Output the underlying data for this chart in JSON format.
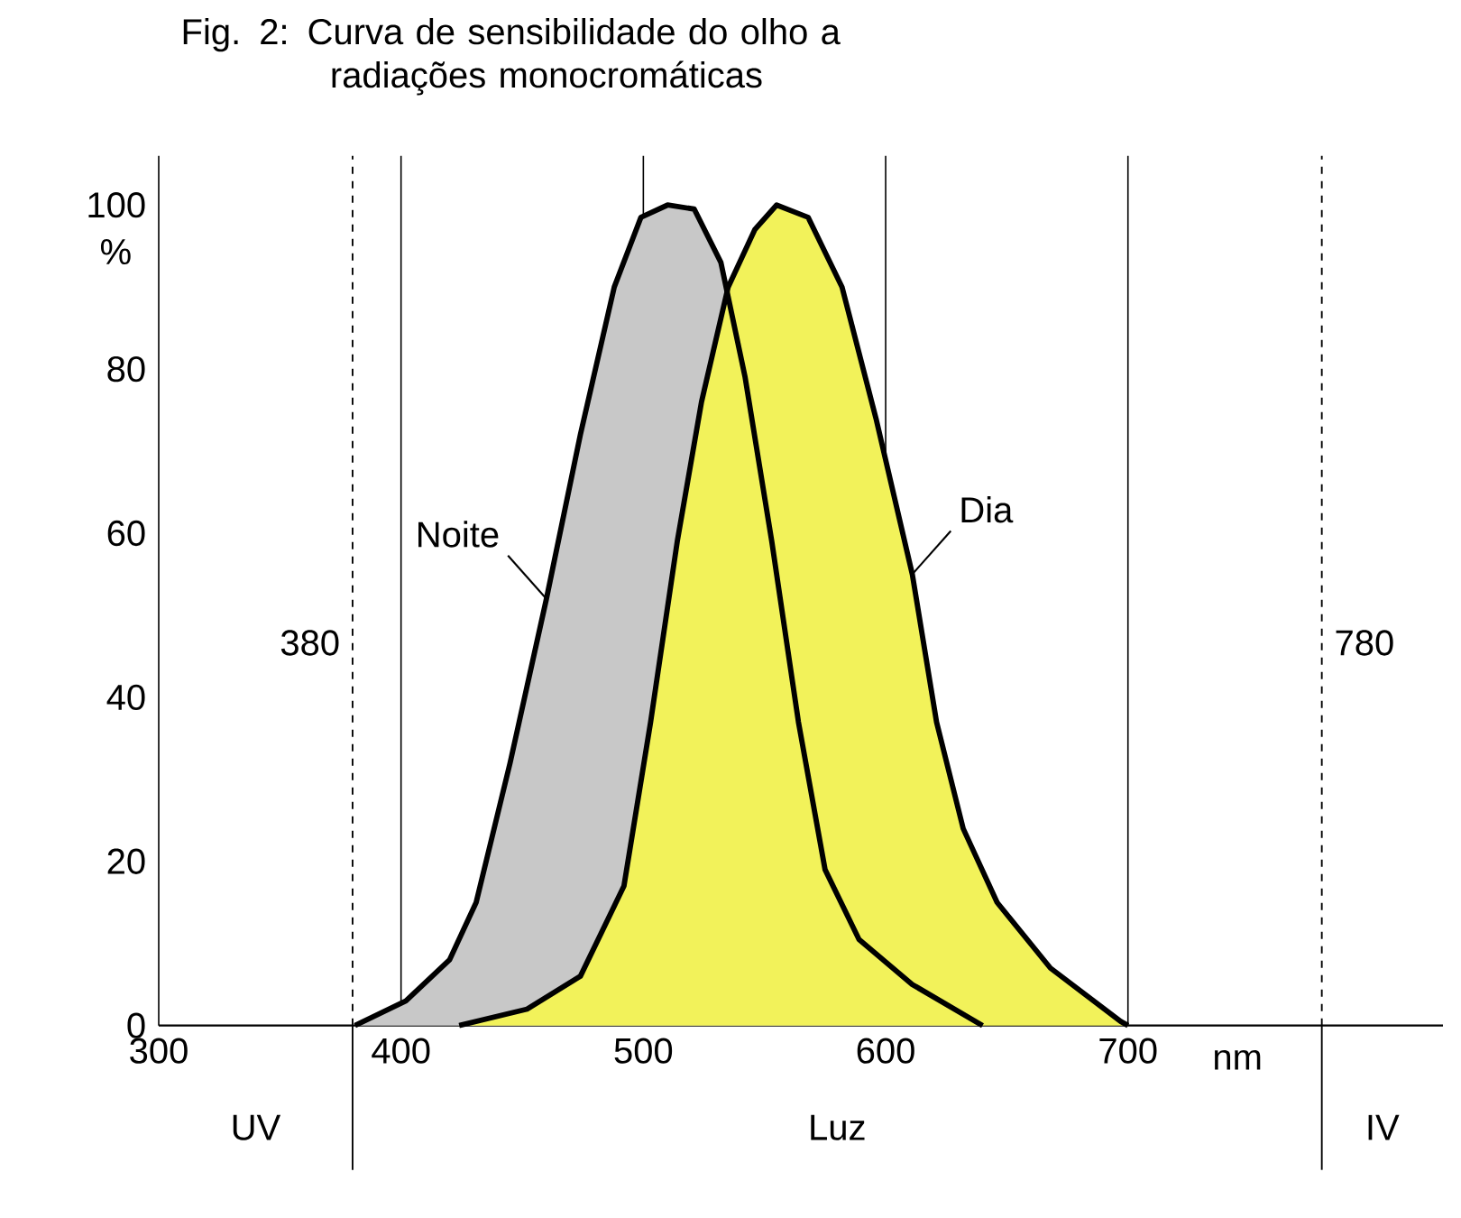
{
  "chart_data": {
    "type": "area",
    "title": "Fig. 2: Curva de sensibilidade do olho a radiações monocromáticas",
    "xlabel": "nm",
    "ylabel": "%",
    "xlim": [
      300,
      830
    ],
    "xticks": [
      300,
      400,
      500,
      600,
      700
    ],
    "ylim": [
      0,
      106
    ],
    "yticks": [
      0,
      20,
      40,
      60,
      80,
      100
    ],
    "grid": "x",
    "series": [
      {
        "name": "Noite",
        "color": "#c8c8c8",
        "x": [
          381,
          402,
          420,
          431,
          445,
          460,
          474,
          488,
          499,
          510,
          521,
          532,
          542,
          553,
          564,
          575,
          589,
          611,
          640
        ],
        "values": [
          0,
          3,
          8,
          15,
          32,
          52,
          72,
          90,
          98.5,
          100,
          99.5,
          93,
          79,
          59,
          37,
          19,
          10.5,
          5,
          0
        ]
      },
      {
        "name": "Dia",
        "color": "#f2f25a",
        "x": [
          424,
          452,
          474,
          492,
          503,
          514,
          524,
          535,
          546,
          555,
          568,
          582,
          596,
          611,
          621,
          632,
          646,
          668,
          697,
          700
        ],
        "values": [
          0,
          2,
          6,
          17,
          37,
          59,
          76,
          90,
          97,
          100,
          98.5,
          90,
          74,
          55,
          37,
          24,
          15,
          7,
          0.5,
          0
        ]
      }
    ],
    "ref_lines": [
      {
        "axis": "x",
        "value": 380,
        "label": "380",
        "line_style": "dashed"
      },
      {
        "axis": "x",
        "value": 780,
        "label": "780",
        "line_style": "dashed"
      }
    ],
    "annotations": [
      "UV",
      "Luz",
      "IV"
    ]
  }
}
